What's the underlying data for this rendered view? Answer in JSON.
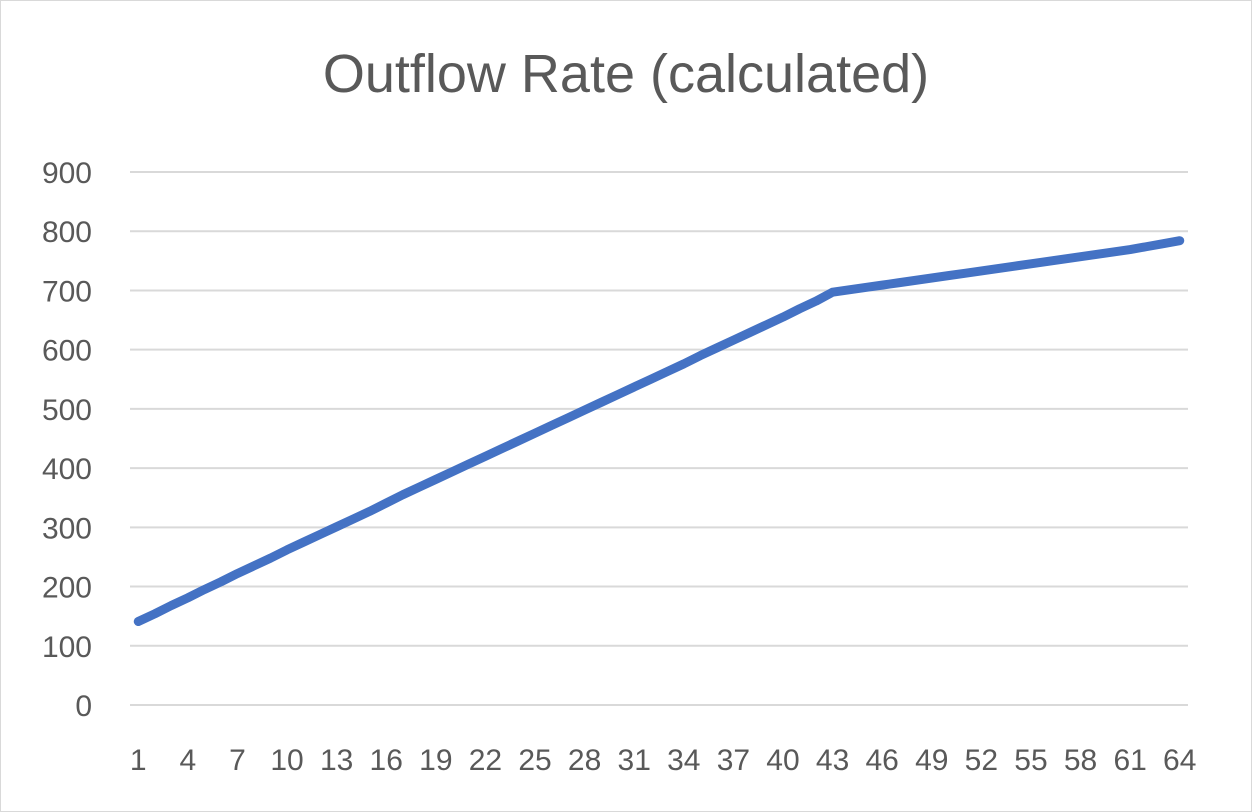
{
  "chart_data": {
    "type": "line",
    "title": "Outflow Rate (calculated)",
    "xlabel": "",
    "ylabel": "",
    "ylim": [
      0,
      900
    ],
    "y_ticks": [
      0,
      100,
      200,
      300,
      400,
      500,
      600,
      700,
      800,
      900
    ],
    "x_tick_labels": [
      "1",
      "4",
      "7",
      "10",
      "13",
      "16",
      "19",
      "22",
      "25",
      "28",
      "31",
      "34",
      "37",
      "40",
      "43",
      "46",
      "49",
      "52",
      "55",
      "58",
      "61",
      "64"
    ],
    "grid": true,
    "legend": "none",
    "line_color": "#4472c4",
    "series": [
      {
        "x": [
          1,
          2,
          3,
          4,
          5,
          6,
          7,
          8,
          9,
          10,
          11,
          12,
          13,
          14,
          15,
          16,
          17,
          18,
          19,
          20,
          21,
          22,
          23,
          24,
          25,
          26,
          27,
          28,
          29,
          30,
          31,
          32,
          33,
          34,
          35,
          36,
          37,
          38,
          39,
          40,
          41,
          42,
          43,
          44,
          45,
          46,
          47,
          48,
          49,
          50,
          51,
          52,
          53,
          54,
          55,
          56,
          57,
          58,
          59,
          60,
          61,
          62,
          63,
          64
        ],
        "values": [
          141,
          154,
          168,
          181,
          195,
          208,
          222,
          235,
          248,
          262,
          275,
          288,
          301,
          314,
          327,
          341,
          355,
          368,
          381,
          394,
          407,
          420,
          433,
          446,
          459,
          472,
          485,
          498,
          511,
          524,
          537,
          550,
          563,
          576,
          590,
          603,
          616,
          629,
          642,
          655,
          669,
          682,
          697,
          701,
          705,
          709,
          713,
          717,
          721,
          725,
          729,
          733,
          737,
          741,
          745,
          749,
          753,
          757,
          761,
          765,
          769,
          774,
          779,
          784
        ]
      }
    ]
  }
}
